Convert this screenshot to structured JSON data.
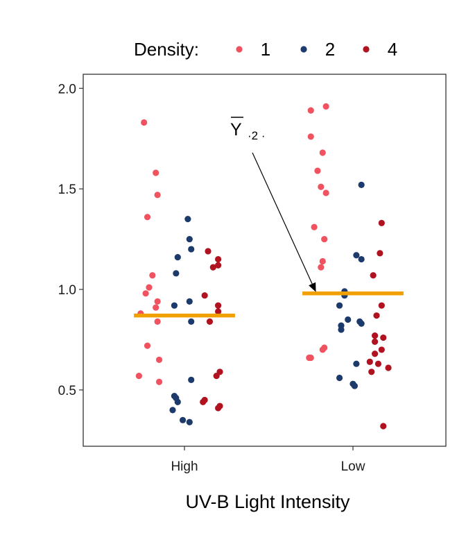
{
  "chart_data": {
    "type": "scatter",
    "title": "",
    "xlabel": "UV-B Light Intensity",
    "ylabel": "",
    "categories": [
      "High",
      "Low"
    ],
    "ylim": [
      0.22,
      2.07
    ],
    "yticks": [
      0.5,
      1.0,
      1.5,
      2.0
    ],
    "ytick_labels": [
      "0.5",
      "1.0",
      "1.5",
      "2.0"
    ],
    "grid": false,
    "legend": {
      "title": "Density:",
      "placement": "top"
    },
    "series": [
      {
        "name": "1",
        "color": "#f0525f",
        "points": [
          {
            "x": "High",
            "offset": -0.24,
            "y": 1.83
          },
          {
            "x": "High",
            "offset": -0.17,
            "y": 1.58
          },
          {
            "x": "High",
            "offset": -0.16,
            "y": 1.47
          },
          {
            "x": "High",
            "offset": -0.22,
            "y": 1.36
          },
          {
            "x": "High",
            "offset": -0.19,
            "y": 1.07
          },
          {
            "x": "High",
            "offset": -0.21,
            "y": 1.01
          },
          {
            "x": "High",
            "offset": -0.23,
            "y": 0.98
          },
          {
            "x": "High",
            "offset": -0.16,
            "y": 0.94
          },
          {
            "x": "High",
            "offset": -0.17,
            "y": 0.91
          },
          {
            "x": "High",
            "offset": -0.26,
            "y": 0.88
          },
          {
            "x": "High",
            "offset": -0.16,
            "y": 0.84
          },
          {
            "x": "High",
            "offset": -0.22,
            "y": 0.72
          },
          {
            "x": "High",
            "offset": -0.15,
            "y": 0.65
          },
          {
            "x": "High",
            "offset": -0.27,
            "y": 0.57
          },
          {
            "x": "High",
            "offset": -0.15,
            "y": 0.54
          },
          {
            "x": "Low",
            "offset": -0.25,
            "y": 1.89
          },
          {
            "x": "Low",
            "offset": -0.16,
            "y": 1.91
          },
          {
            "x": "Low",
            "offset": -0.25,
            "y": 1.76
          },
          {
            "x": "Low",
            "offset": -0.18,
            "y": 1.68
          },
          {
            "x": "Low",
            "offset": -0.21,
            "y": 1.59
          },
          {
            "x": "Low",
            "offset": -0.19,
            "y": 1.51
          },
          {
            "x": "Low",
            "offset": -0.16,
            "y": 1.48
          },
          {
            "x": "Low",
            "offset": -0.23,
            "y": 1.31
          },
          {
            "x": "Low",
            "offset": -0.17,
            "y": 1.25
          },
          {
            "x": "Low",
            "offset": -0.18,
            "y": 1.14
          },
          {
            "x": "Low",
            "offset": -0.19,
            "y": 1.11
          },
          {
            "x": "Low",
            "offset": -0.17,
            "y": 0.71
          },
          {
            "x": "Low",
            "offset": -0.18,
            "y": 0.7
          },
          {
            "x": "Low",
            "offset": -0.26,
            "y": 0.66
          },
          {
            "x": "Low",
            "offset": -0.25,
            "y": 0.66
          }
        ]
      },
      {
        "name": "2",
        "color": "#1c3a6b",
        "points": [
          {
            "x": "High",
            "offset": 0.02,
            "y": 1.35
          },
          {
            "x": "High",
            "offset": 0.03,
            "y": 1.25
          },
          {
            "x": "High",
            "offset": 0.04,
            "y": 1.2
          },
          {
            "x": "High",
            "offset": -0.04,
            "y": 1.16
          },
          {
            "x": "High",
            "offset": -0.05,
            "y": 1.08
          },
          {
            "x": "High",
            "offset": 0.03,
            "y": 0.94
          },
          {
            "x": "High",
            "offset": -0.06,
            "y": 0.92
          },
          {
            "x": "High",
            "offset": 0.04,
            "y": 0.84
          },
          {
            "x": "High",
            "offset": 0.04,
            "y": 0.55
          },
          {
            "x": "High",
            "offset": -0.06,
            "y": 0.47
          },
          {
            "x": "High",
            "offset": -0.05,
            "y": 0.46
          },
          {
            "x": "High",
            "offset": -0.04,
            "y": 0.44
          },
          {
            "x": "High",
            "offset": -0.07,
            "y": 0.4
          },
          {
            "x": "High",
            "offset": -0.01,
            "y": 0.35
          },
          {
            "x": "High",
            "offset": 0.03,
            "y": 0.34
          },
          {
            "x": "Low",
            "offset": 0.05,
            "y": 1.52
          },
          {
            "x": "Low",
            "offset": 0.02,
            "y": 1.17
          },
          {
            "x": "Low",
            "offset": 0.05,
            "y": 1.15
          },
          {
            "x": "Low",
            "offset": -0.05,
            "y": 0.99
          },
          {
            "x": "Low",
            "offset": -0.05,
            "y": 0.97
          },
          {
            "x": "Low",
            "offset": -0.08,
            "y": 0.92
          },
          {
            "x": "Low",
            "offset": -0.03,
            "y": 0.85
          },
          {
            "x": "Low",
            "offset": 0.04,
            "y": 0.84
          },
          {
            "x": "Low",
            "offset": 0.05,
            "y": 0.83
          },
          {
            "x": "Low",
            "offset": -0.07,
            "y": 0.82
          },
          {
            "x": "Low",
            "offset": -0.07,
            "y": 0.8
          },
          {
            "x": "Low",
            "offset": 0.02,
            "y": 0.63
          },
          {
            "x": "Low",
            "offset": -0.08,
            "y": 0.56
          },
          {
            "x": "Low",
            "offset": 0.0,
            "y": 0.53
          },
          {
            "x": "Low",
            "offset": 0.01,
            "y": 0.52
          }
        ]
      },
      {
        "name": "4",
        "color": "#b01220",
        "points": [
          {
            "x": "High",
            "offset": 0.14,
            "y": 1.19
          },
          {
            "x": "High",
            "offset": 0.2,
            "y": 1.15
          },
          {
            "x": "High",
            "offset": 0.2,
            "y": 1.12
          },
          {
            "x": "High",
            "offset": 0.17,
            "y": 1.11
          },
          {
            "x": "High",
            "offset": 0.12,
            "y": 0.97
          },
          {
            "x": "High",
            "offset": 0.2,
            "y": 0.92
          },
          {
            "x": "High",
            "offset": 0.2,
            "y": 0.89
          },
          {
            "x": "High",
            "offset": 0.15,
            "y": 0.84
          },
          {
            "x": "High",
            "offset": 0.21,
            "y": 0.59
          },
          {
            "x": "High",
            "offset": 0.19,
            "y": 0.57
          },
          {
            "x": "High",
            "offset": 0.12,
            "y": 0.45
          },
          {
            "x": "High",
            "offset": 0.11,
            "y": 0.44
          },
          {
            "x": "High",
            "offset": 0.21,
            "y": 0.42
          },
          {
            "x": "High",
            "offset": 0.2,
            "y": 0.41
          },
          {
            "x": "Low",
            "offset": 0.17,
            "y": 1.33
          },
          {
            "x": "Low",
            "offset": 0.16,
            "y": 1.18
          },
          {
            "x": "Low",
            "offset": 0.12,
            "y": 1.07
          },
          {
            "x": "Low",
            "offset": 0.17,
            "y": 0.92
          },
          {
            "x": "Low",
            "offset": 0.14,
            "y": 0.87
          },
          {
            "x": "Low",
            "offset": 0.13,
            "y": 0.77
          },
          {
            "x": "Low",
            "offset": 0.18,
            "y": 0.76
          },
          {
            "x": "Low",
            "offset": 0.13,
            "y": 0.74
          },
          {
            "x": "Low",
            "offset": 0.17,
            "y": 0.7
          },
          {
            "x": "Low",
            "offset": 0.13,
            "y": 0.68
          },
          {
            "x": "Low",
            "offset": 0.1,
            "y": 0.64
          },
          {
            "x": "Low",
            "offset": 0.15,
            "y": 0.63
          },
          {
            "x": "Low",
            "offset": 0.21,
            "y": 0.61
          },
          {
            "x": "Low",
            "offset": 0.11,
            "y": 0.59
          },
          {
            "x": "Low",
            "offset": 0.18,
            "y": 0.32
          }
        ]
      }
    ],
    "means": [
      {
        "x": "High",
        "y": 0.87
      },
      {
        "x": "Low",
        "y": 0.98
      }
    ],
    "mean_color": "#f0a000",
    "annotation": {
      "symbol": "Y",
      "subscript": "·2 ·",
      "target": {
        "x": "Low",
        "offset": -0.22,
        "y": 0.98
      }
    }
  }
}
